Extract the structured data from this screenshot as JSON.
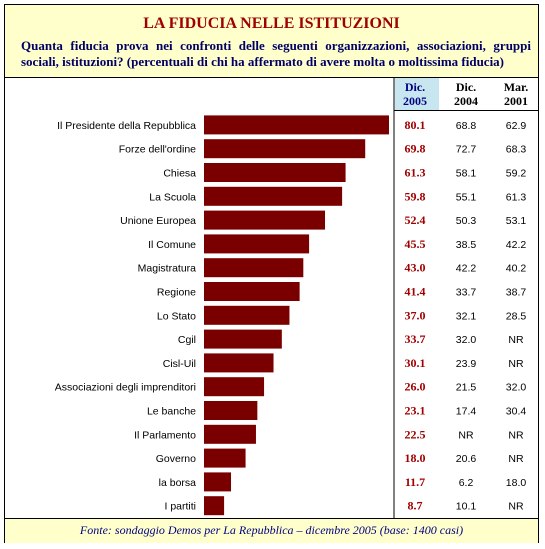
{
  "title": "LA FIDUCIA NELLE ISTITUZIONI",
  "subtitle": "Quanta fiducia prova nei confronti delle seguenti organizzazioni, associazioni, gruppi sociali, istituzioni? (percentuali di chi ha affermato di avere molta o moltissima fiducia)",
  "source": "Fonte: sondaggio Demos per La Repubblica – dicembre 2005 (base: 1400 casi)",
  "colors": {
    "bar": "#7a0000",
    "highlight_text": "#a00000",
    "header_bg": "#ffffcc",
    "dic2005_header_bg": "#c8e6f0",
    "dark_blue": "#000066"
  },
  "chart_data": {
    "type": "bar",
    "orientation": "horizontal",
    "categories": [
      "Il Presidente della Repubblica",
      "Forze dell'ordine",
      "Chiesa",
      "La Scuola",
      "Unione Europea",
      "Il Comune",
      "Magistratura",
      "Regione",
      "Lo Stato",
      "Cgil",
      "Cisl-Uil",
      "Associazioni degli imprenditori",
      "Le banche",
      "Il Parlamento",
      "Governo",
      "la borsa",
      "I partiti"
    ],
    "columns": [
      {
        "header": [
          "Dic.",
          "2005"
        ],
        "values": [
          "80.1",
          "69.8",
          "61.3",
          "59.8",
          "52.4",
          "45.5",
          "43.0",
          "41.4",
          "37.0",
          "33.7",
          "30.1",
          "26.0",
          "23.1",
          "22.5",
          "18.0",
          "11.7",
          "8.7"
        ]
      },
      {
        "header": [
          "Dic.",
          "2004"
        ],
        "values": [
          "68.8",
          "72.7",
          "58.1",
          "55.1",
          "50.3",
          "38.5",
          "42.2",
          "33.7",
          "32.1",
          "32.0",
          "23.9",
          "21.5",
          "17.4",
          "NR",
          "20.6",
          "6.2",
          "10.1"
        ]
      },
      {
        "header": [
          "Mar.",
          "2001"
        ],
        "values": [
          "62.9",
          "68.3",
          "59.2",
          "61.3",
          "53.1",
          "42.2",
          "40.2",
          "38.7",
          "28.5",
          "NR",
          "NR",
          "32.0",
          "30.4",
          "NR",
          "NR",
          "18.0",
          "NR"
        ]
      }
    ],
    "values": [
      80.1,
      69.8,
      61.3,
      59.8,
      52.4,
      45.5,
      43.0,
      41.4,
      37.0,
      33.7,
      30.1,
      26.0,
      23.1,
      22.5,
      18.0,
      11.7,
      8.7
    ],
    "xlim": [
      0,
      80.1
    ]
  }
}
